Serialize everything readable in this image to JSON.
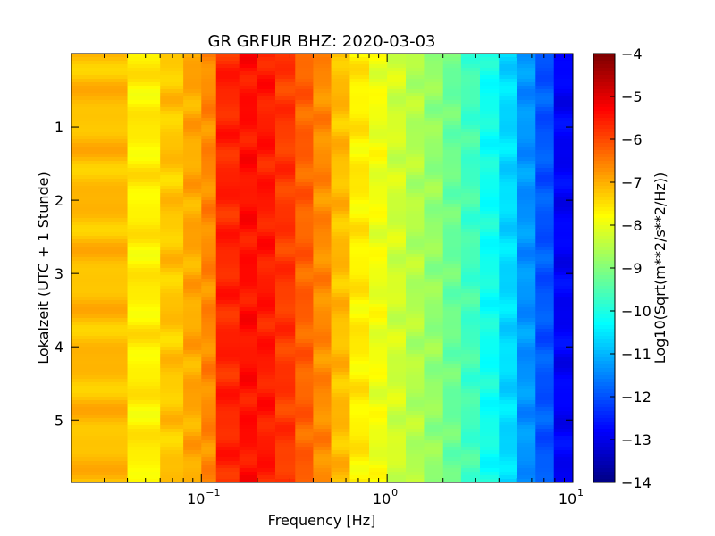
{
  "chart_data": {
    "type": "heatmap",
    "title": "GR GRFUR BHZ: 2020-03-03",
    "xlabel": "Frequency [Hz]",
    "ylabel": "Lokalzeit (UTC + 1 Stunde)",
    "x_scale": "log",
    "xlim": [
      0.02,
      10
    ],
    "ylim": [
      0,
      5.85
    ],
    "y_inverted": true,
    "x_ticks": [
      {
        "value": 0.1,
        "base": "10",
        "exp": "−1"
      },
      {
        "value": 1,
        "base": "10",
        "exp": "0"
      },
      {
        "value": 10,
        "base": "10",
        "exp": "1"
      }
    ],
    "y_ticks": [
      {
        "value": 1,
        "label": "1"
      },
      {
        "value": 2,
        "label": "2"
      },
      {
        "value": 3,
        "label": "3"
      },
      {
        "value": 4,
        "label": "4"
      },
      {
        "value": 5,
        "label": "5"
      }
    ],
    "colormap": "jet",
    "colorbar": {
      "label": "Log10(Sqrt(m**2/s**2/Hz))",
      "range": [
        -14,
        -4
      ],
      "ticks": [
        {
          "value": -4,
          "label": "−4"
        },
        {
          "value": -5,
          "label": "−5"
        },
        {
          "value": -6,
          "label": "−6"
        },
        {
          "value": -7,
          "label": "−7"
        },
        {
          "value": -8,
          "label": "−8"
        },
        {
          "value": -9,
          "label": "−9"
        },
        {
          "value": -10,
          "label": "−10"
        },
        {
          "value": -11,
          "label": "−11"
        },
        {
          "value": -12,
          "label": "−12"
        },
        {
          "value": -13,
          "label": "−13"
        },
        {
          "value": -14,
          "label": "−14"
        }
      ]
    },
    "frequency_bins_hz": [
      0.02,
      0.04,
      0.06,
      0.08,
      0.1,
      0.12,
      0.16,
      0.2,
      0.25,
      0.32,
      0.4,
      0.5,
      0.63,
      0.8,
      1.0,
      1.26,
      1.58,
      2.0,
      2.5,
      3.16,
      4.0,
      5.0,
      6.3,
      7.9,
      10.0
    ],
    "mean_spectrum": [
      -7.1,
      -7.6,
      -7.2,
      -6.9,
      -6.6,
      -5.6,
      -5.4,
      -5.5,
      -5.8,
      -6.2,
      -6.6,
      -7.1,
      -7.6,
      -7.9,
      -8.2,
      -8.5,
      -8.8,
      -9.2,
      -9.6,
      -10.1,
      -10.6,
      -11.3,
      -11.9,
      -12.8,
      -13.6
    ],
    "time_rows": 120
  }
}
